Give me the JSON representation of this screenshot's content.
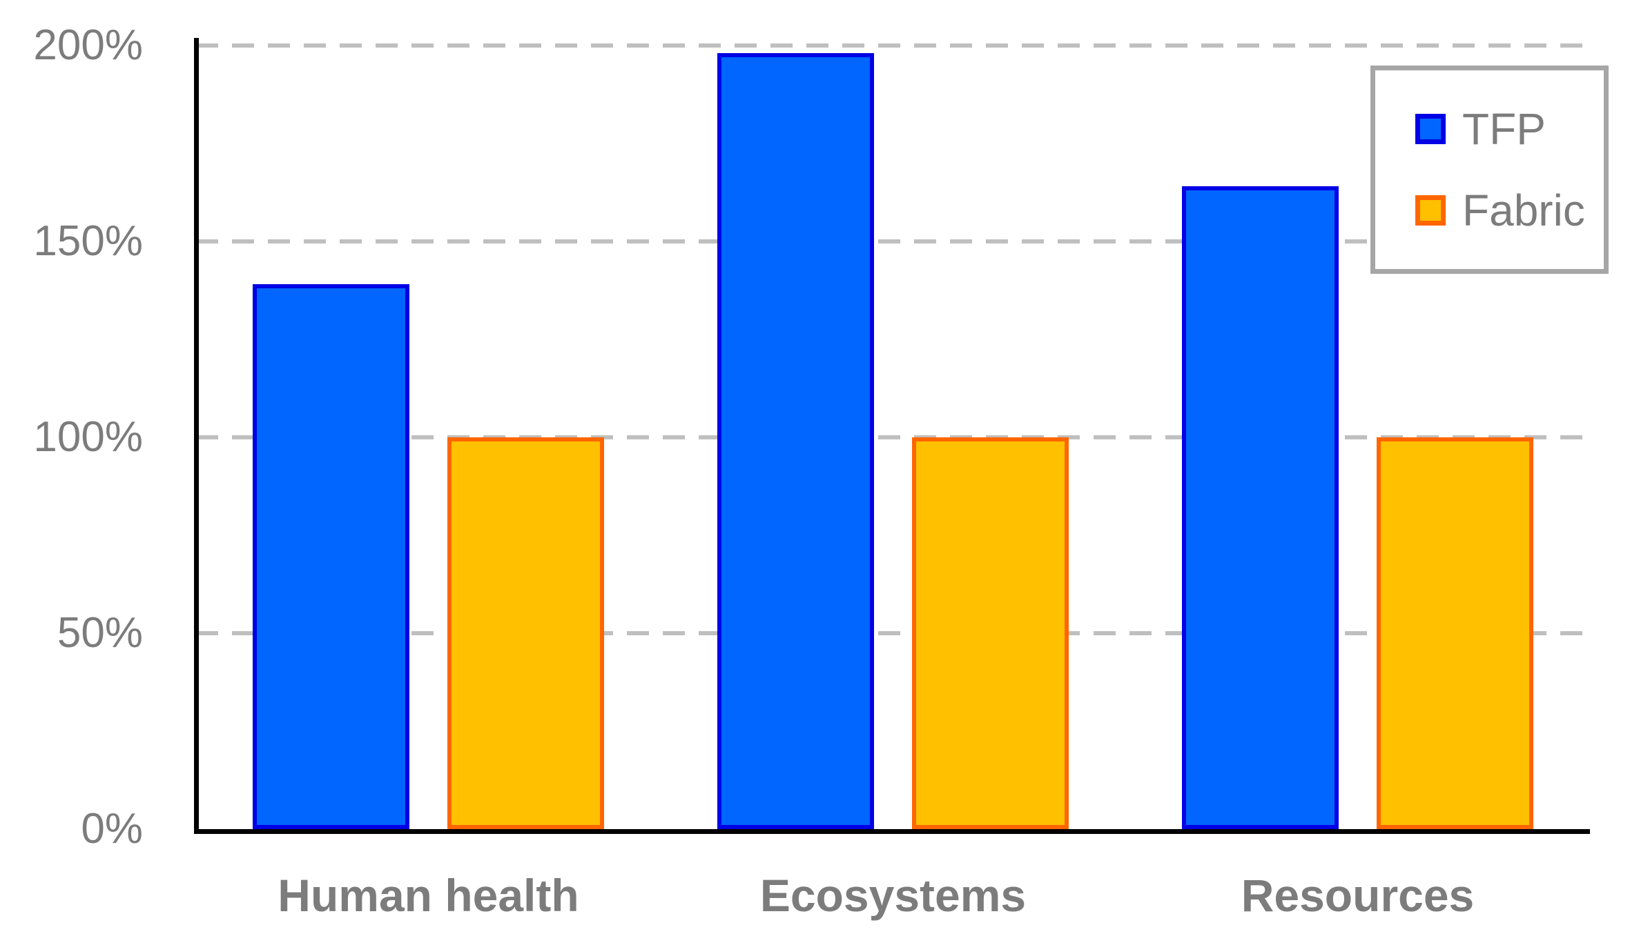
{
  "chart_data": {
    "type": "bar",
    "categories": [
      "Human health",
      "Ecosystems",
      "Resources"
    ],
    "series": [
      {
        "name": "TFP",
        "values": [
          139,
          198,
          164
        ],
        "fill": "#0066FF",
        "border": "#0000E6"
      },
      {
        "name": "Fabric",
        "values": [
          100,
          100,
          100
        ],
        "fill": "#FFC000",
        "border": "#FF6600"
      }
    ],
    "title": "",
    "xlabel": "",
    "ylabel": "",
    "ylim": [
      0,
      200
    ],
    "yticks": [
      0,
      50,
      100,
      150,
      200
    ],
    "ytick_labels": [
      "0%",
      "50%",
      "100%",
      "150%",
      "200%"
    ],
    "grid": "horizontal-dashed",
    "grid_color": "#BFBFBF",
    "axis_color": "#000000",
    "text_color": "#7C7C7C",
    "legend_position": "top-right",
    "legend_border_color": "#A6A6A6"
  }
}
